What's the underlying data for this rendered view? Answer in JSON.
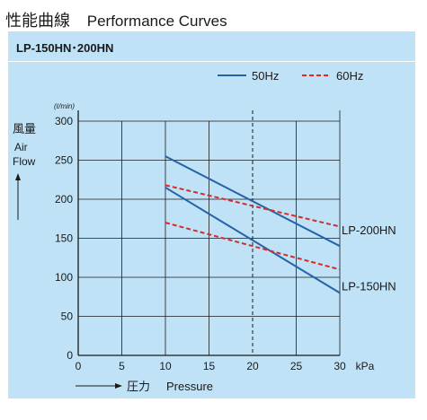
{
  "header": {
    "title_jp": "性能曲線",
    "title_en": "Performance Curves"
  },
  "model_label": "LP-150HN･200HN",
  "chart_data": {
    "type": "line",
    "x_axis": {
      "label_jp": "圧力",
      "label_en": "Pressure",
      "unit": "kPa",
      "range": [
        0,
        30
      ],
      "ticks": [
        0,
        5,
        10,
        15,
        20,
        25,
        30
      ],
      "tick_labels": [
        "0",
        "5",
        "10",
        "15",
        "20",
        "25",
        "30"
      ]
    },
    "y_axis": {
      "label_jp": "風量",
      "label_en_1": "Air",
      "label_en_2": "Flow",
      "unit": "(ℓ/min)",
      "range": [
        0,
        300
      ],
      "ticks": [
        0,
        50,
        100,
        150,
        200,
        250,
        300
      ],
      "tick_labels": [
        "0",
        "50",
        "100",
        "150",
        "200",
        "250",
        "300"
      ]
    },
    "grid": true,
    "reference_line_x": 20,
    "legend": {
      "position": "top-right",
      "entries": [
        {
          "label": "50Hz",
          "color": "#2563a8",
          "dash": "solid"
        },
        {
          "label": "60Hz",
          "color": "#d62b2b",
          "dash": "dashed"
        }
      ]
    },
    "series": [
      {
        "name": "LP-200HN 50Hz",
        "color": "#2563a8",
        "dash": "solid",
        "x": [
          10,
          30
        ],
        "y": [
          255,
          140
        ]
      },
      {
        "name": "LP-200HN 60Hz",
        "color": "#d62b2b",
        "dash": "dashed",
        "x": [
          10,
          30
        ],
        "y": [
          218,
          165
        ]
      },
      {
        "name": "LP-150HN 50Hz",
        "color": "#2563a8",
        "dash": "solid",
        "x": [
          10,
          30
        ],
        "y": [
          215,
          80
        ]
      },
      {
        "name": "LP-150HN 60Hz",
        "color": "#d62b2b",
        "dash": "dashed",
        "x": [
          10,
          30
        ],
        "y": [
          170,
          110
        ]
      }
    ],
    "annotations": [
      {
        "text": "LP-200HN",
        "x": 30,
        "y": 160
      },
      {
        "text": "LP-150HN",
        "x": 30,
        "y": 88
      }
    ]
  }
}
